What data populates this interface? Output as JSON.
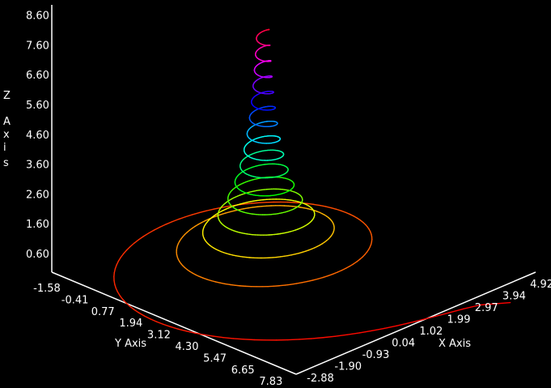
{
  "chart_data": {
    "type": "line3d",
    "axes": {
      "x": {
        "label": "X Axis",
        "ticks": [
          "-2.88",
          "-1.90",
          "-0.93",
          "0.04",
          "1.02",
          "1.99",
          "2.97",
          "3.94",
          "4.92"
        ],
        "range": [
          -2.88,
          4.92
        ]
      },
      "y": {
        "label": "Y Axis",
        "ticks": [
          "-1.58",
          "-0.41",
          "0.77",
          "1.94",
          "3.12",
          "4.30",
          "5.47",
          "6.65",
          "7.83"
        ],
        "range": [
          -1.58,
          7.83
        ]
      },
      "z": {
        "label": "Z Axis",
        "ticks": [
          "0.60",
          "1.60",
          "2.60",
          "3.60",
          "4.60",
          "5.60",
          "6.60",
          "7.60",
          "8.60"
        ],
        "range": [
          0.0,
          8.6
        ]
      }
    },
    "series": [
      {
        "kind": "decaying-helix",
        "center": [
          0.8,
          2.2
        ],
        "z_range": [
          0.0,
          7.6
        ],
        "turns": 15,
        "radius_start": 7.0,
        "radius_end": 0.15,
        "colormap": "rainbow"
      }
    ],
    "grid": false,
    "colors": {
      "background": "#000000",
      "axis": "#ffffff",
      "text": "#ffffff"
    }
  }
}
